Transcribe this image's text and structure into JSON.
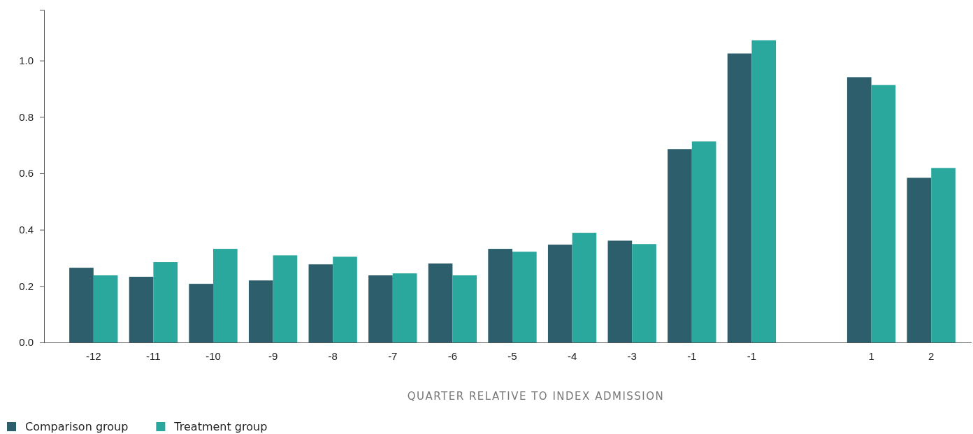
{
  "chart_data": {
    "type": "bar",
    "xlabel": "QUARTER RELATIVE TO INDEX ADMISSION",
    "categories": [
      "-12",
      "-11",
      "-10",
      "-9",
      "-8",
      "-7",
      "-6",
      "-5",
      "-4",
      "-3",
      "-1",
      "-1",
      null,
      "1",
      "2"
    ],
    "series": [
      {
        "name": "Comparison group",
        "color": "#2c5f6b",
        "values": [
          0.265,
          0.233,
          0.208,
          0.22,
          0.277,
          0.238,
          0.28,
          0.332,
          0.347,
          0.361,
          0.686,
          1.025,
          null,
          0.941,
          0.584
        ]
      },
      {
        "name": "Treatment group",
        "color": "#2aa89e",
        "values": [
          0.238,
          0.285,
          0.332,
          0.309,
          0.304,
          0.245,
          0.238,
          0.322,
          0.389,
          0.349,
          0.713,
          1.072,
          null,
          0.913,
          0.619
        ]
      }
    ],
    "ylim": [
      0,
      1.18
    ],
    "yticks": [
      {
        "value": 0,
        "label": "0.0"
      },
      {
        "value": 0.2,
        "label": "0.2"
      },
      {
        "value": 0.4,
        "label": "0.4"
      },
      {
        "value": 0.6,
        "label": "0.6"
      },
      {
        "value": 0.8,
        "label": "0.8"
      },
      {
        "value": 1,
        "label": "1.0"
      }
    ],
    "grid": false,
    "legend": "bottom left"
  }
}
